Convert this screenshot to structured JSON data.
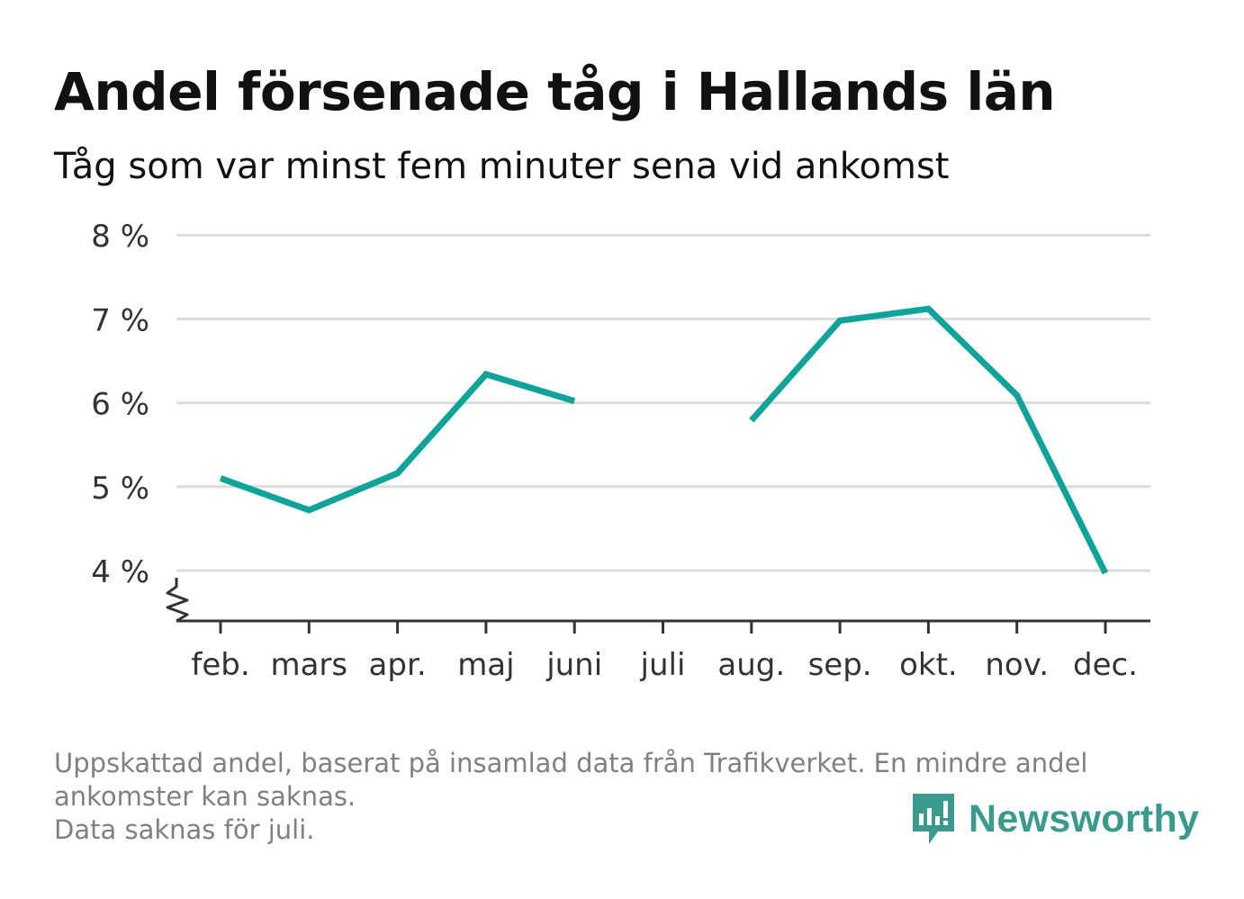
{
  "title": "Andel försenade tåg i Hallands län",
  "subtitle": "Tåg som var minst fem minuter sena vid ankomst",
  "footnote": {
    "line1": "Uppskattad andel, baserat på insamlad data från Trafikverket. En mindre andel",
    "line2": "ankomster kan saknas.",
    "line3": "Data saknas för juli."
  },
  "brand": {
    "name": "Newsworthy",
    "icon": "newsworthy-logo-icon",
    "color": "#3b9a8e"
  },
  "colors": {
    "line": "#10a39a",
    "grid": "#dcdcdc",
    "axis": "#333333",
    "text": "#333333"
  },
  "chart_data": {
    "type": "line",
    "categories": [
      "feb.",
      "mars",
      "apr.",
      "maj",
      "juni",
      "juli",
      "aug.",
      "sep.",
      "okt.",
      "nov.",
      "dec."
    ],
    "values": [
      5.1,
      4.72,
      5.16,
      6.34,
      6.02,
      null,
      5.79,
      6.98,
      7.12,
      6.09,
      3.97
    ],
    "ylim": [
      3.4,
      8
    ],
    "yticks": [
      4,
      5,
      6,
      7,
      8
    ],
    "ytick_labels": [
      "4 %",
      "5 %",
      "6 %",
      "7 %",
      "8 %"
    ],
    "axis_break": true,
    "grid": true,
    "legend": "none"
  }
}
